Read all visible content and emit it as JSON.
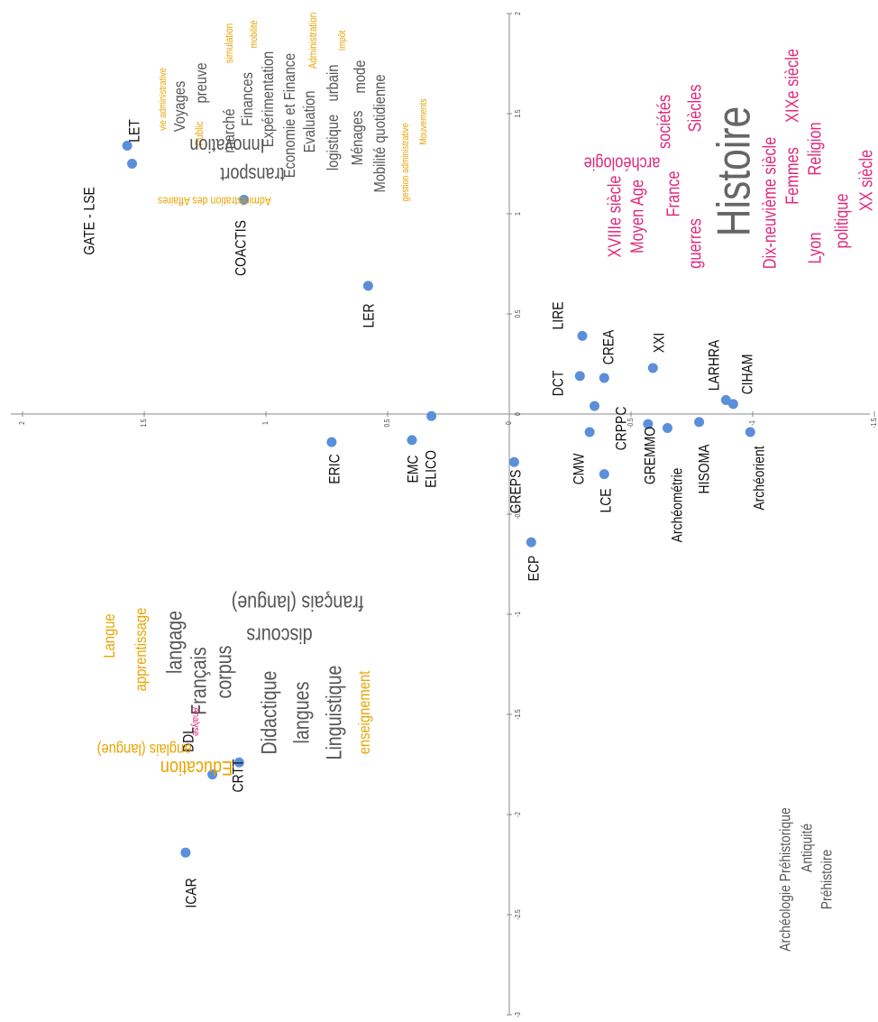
{
  "chart_data": {
    "type": "scatter",
    "labels": [
      "LET",
      "GATE - LSE",
      "COACTIS",
      "LER",
      "ERIC",
      "EMC",
      "ELICO",
      "GREPS",
      "ECP",
      "LIRE",
      "DCT",
      "CREA",
      "CRPPC",
      "CMW",
      "LCE",
      "XXI",
      "GREMMO",
      "Archéométrie",
      "HISOMA",
      "LARHRA",
      "CIHAM",
      "Archéorient",
      "DDL",
      "CRTT",
      "ICAR"
    ],
    "x": [
      1.34,
      1.25,
      1.07,
      0.64,
      -0.14,
      -0.13,
      -0.01,
      -0.24,
      -0.64,
      0.39,
      0.19,
      0.18,
      0.04,
      -0.09,
      -0.3,
      0.23,
      -0.05,
      -0.07,
      -0.04,
      0.07,
      0.05,
      -0.09,
      -1.8,
      -1.74,
      -2.19
    ],
    "y": [
      1.57,
      1.55,
      1.09,
      0.58,
      0.73,
      0.4,
      0.32,
      -0.02,
      -0.09,
      -0.3,
      -0.29,
      -0.39,
      -0.35,
      -0.33,
      -0.39,
      -0.59,
      -0.57,
      -0.65,
      -0.78,
      -0.89,
      -0.92,
      -0.99,
      1.22,
      1.11,
      1.33
    ],
    "color": "#5b8fd9",
    "xlim": [
      -3,
      2
    ],
    "xticks": [
      -3,
      -2.5,
      -2,
      -1.5,
      -1,
      -0.5,
      0,
      0.5,
      1,
      1.5,
      2
    ],
    "ylim": [
      -1.5,
      2
    ],
    "yticks": [
      -1.5,
      -1,
      -0.5,
      0,
      0.5,
      1,
      1.5,
      2
    ],
    "words": [
      {
        "text": "vie administrative",
        "color": "#e8a400"
      },
      {
        "text": "Voyages",
        "color": "#555555"
      },
      {
        "text": "Public",
        "color": "#e8a400"
      },
      {
        "text": "preuve",
        "color": "#555555"
      },
      {
        "text": "marché",
        "color": "#555555"
      },
      {
        "text": "simulation",
        "color": "#e8a400"
      },
      {
        "text": "Finances",
        "color": "#555555"
      },
      {
        "text": "mobilité",
        "color": "#e8a400"
      },
      {
        "text": "Expérimentation",
        "color": "#555555"
      },
      {
        "text": "Economie et Finance",
        "color": "#555555"
      },
      {
        "text": "Evaluation",
        "color": "#555555"
      },
      {
        "text": "Administration",
        "color": "#e8a400"
      },
      {
        "text": "logistique",
        "color": "#555555"
      },
      {
        "text": "urbain",
        "color": "#555555"
      },
      {
        "text": "Impôt",
        "color": "#e8a400"
      },
      {
        "text": "Ménages",
        "color": "#555555"
      },
      {
        "text": "mode",
        "color": "#555555"
      },
      {
        "text": "Mobilité quotidienne",
        "color": "#555555"
      },
      {
        "text": "gestion administrative",
        "color": "#e8a400"
      },
      {
        "text": "Mouvements",
        "color": "#e8a400"
      },
      {
        "text": "Innovation",
        "color": "#555555"
      },
      {
        "text": "transport",
        "color": "#555555"
      },
      {
        "text": "Administration des Affaires",
        "color": "#e8a400"
      },
      {
        "text": "XVIIIe siècle",
        "color": "#e0287a"
      },
      {
        "text": "Moyen Age",
        "color": "#e0287a"
      },
      {
        "text": "sociétés",
        "color": "#e0287a"
      },
      {
        "text": "France",
        "color": "#e0287a"
      },
      {
        "text": "archéologie",
        "color": "#e0287a"
      },
      {
        "text": "guerres",
        "color": "#e0287a"
      },
      {
        "text": "Siècles",
        "color": "#e0287a"
      },
      {
        "text": "Histoire",
        "color": "#666666"
      },
      {
        "text": "Dix-neuvième siècle",
        "color": "#e0287a"
      },
      {
        "text": "Femmes",
        "color": "#e0287a"
      },
      {
        "text": "XIXe siècle",
        "color": "#e0287a"
      },
      {
        "text": "Lyon",
        "color": "#e0287a"
      },
      {
        "text": "Religion",
        "color": "#e0287a"
      },
      {
        "text": "politique",
        "color": "#e0287a"
      },
      {
        "text": "XX siècle",
        "color": "#e0287a"
      },
      {
        "text": "Langue",
        "color": "#e8a400"
      },
      {
        "text": "apprentissage",
        "color": "#e8a400"
      },
      {
        "text": "langage",
        "color": "#555555"
      },
      {
        "text": "français (langue)",
        "color": "#555555"
      },
      {
        "text": "discours",
        "color": "#555555"
      },
      {
        "text": "Français",
        "color": "#555555"
      },
      {
        "text": "Analyse",
        "color": "#e0287a"
      },
      {
        "text": "corpus",
        "color": "#555555"
      },
      {
        "text": "Didactique",
        "color": "#555555"
      },
      {
        "text": "langues",
        "color": "#555555"
      },
      {
        "text": "Linguistique",
        "color": "#555555"
      },
      {
        "text": "enseignement",
        "color": "#e8a400"
      },
      {
        "text": "Education",
        "color": "#e8a400"
      },
      {
        "text": "anglais (langue)",
        "color": "#e8a400"
      },
      {
        "text": "Archéologie Préhistorique",
        "color": "#555555"
      },
      {
        "text": "Antiquité",
        "color": "#555555"
      },
      {
        "text": "Préhistoire",
        "color": "#555555"
      }
    ]
  }
}
